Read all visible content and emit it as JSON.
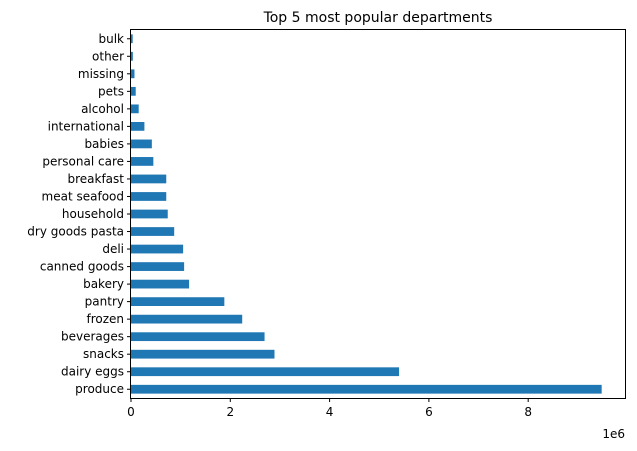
{
  "chart_data": {
    "type": "bar",
    "orientation": "horizontal",
    "title": "Top 5 most popular departments",
    "xlabel": "",
    "ylabel": "",
    "x_offset_text": "1e6",
    "x_scale": 1000000,
    "xlim": [
      0,
      9950000
    ],
    "x_ticks": [
      0,
      2000000,
      4000000,
      6000000,
      8000000
    ],
    "x_tick_labels": [
      "0",
      "2",
      "4",
      "6",
      "8"
    ],
    "bar_color": "#1f77b4",
    "grid": false,
    "legend": "none",
    "categories": [
      "produce",
      "dairy eggs",
      "snacks",
      "beverages",
      "frozen",
      "pantry",
      "bakery",
      "canned goods",
      "deli",
      "dry goods pasta",
      "household",
      "meat seafood",
      "breakfast",
      "personal care",
      "babies",
      "international",
      "alcohol",
      "pets",
      "missing",
      "other",
      "bulk"
    ],
    "values": [
      9480000,
      5400000,
      2890000,
      2690000,
      2240000,
      1880000,
      1170000,
      1070000,
      1050000,
      870000,
      740000,
      710000,
      710000,
      450000,
      420000,
      270000,
      155000,
      95000,
      70000,
      37000,
      34000
    ]
  }
}
